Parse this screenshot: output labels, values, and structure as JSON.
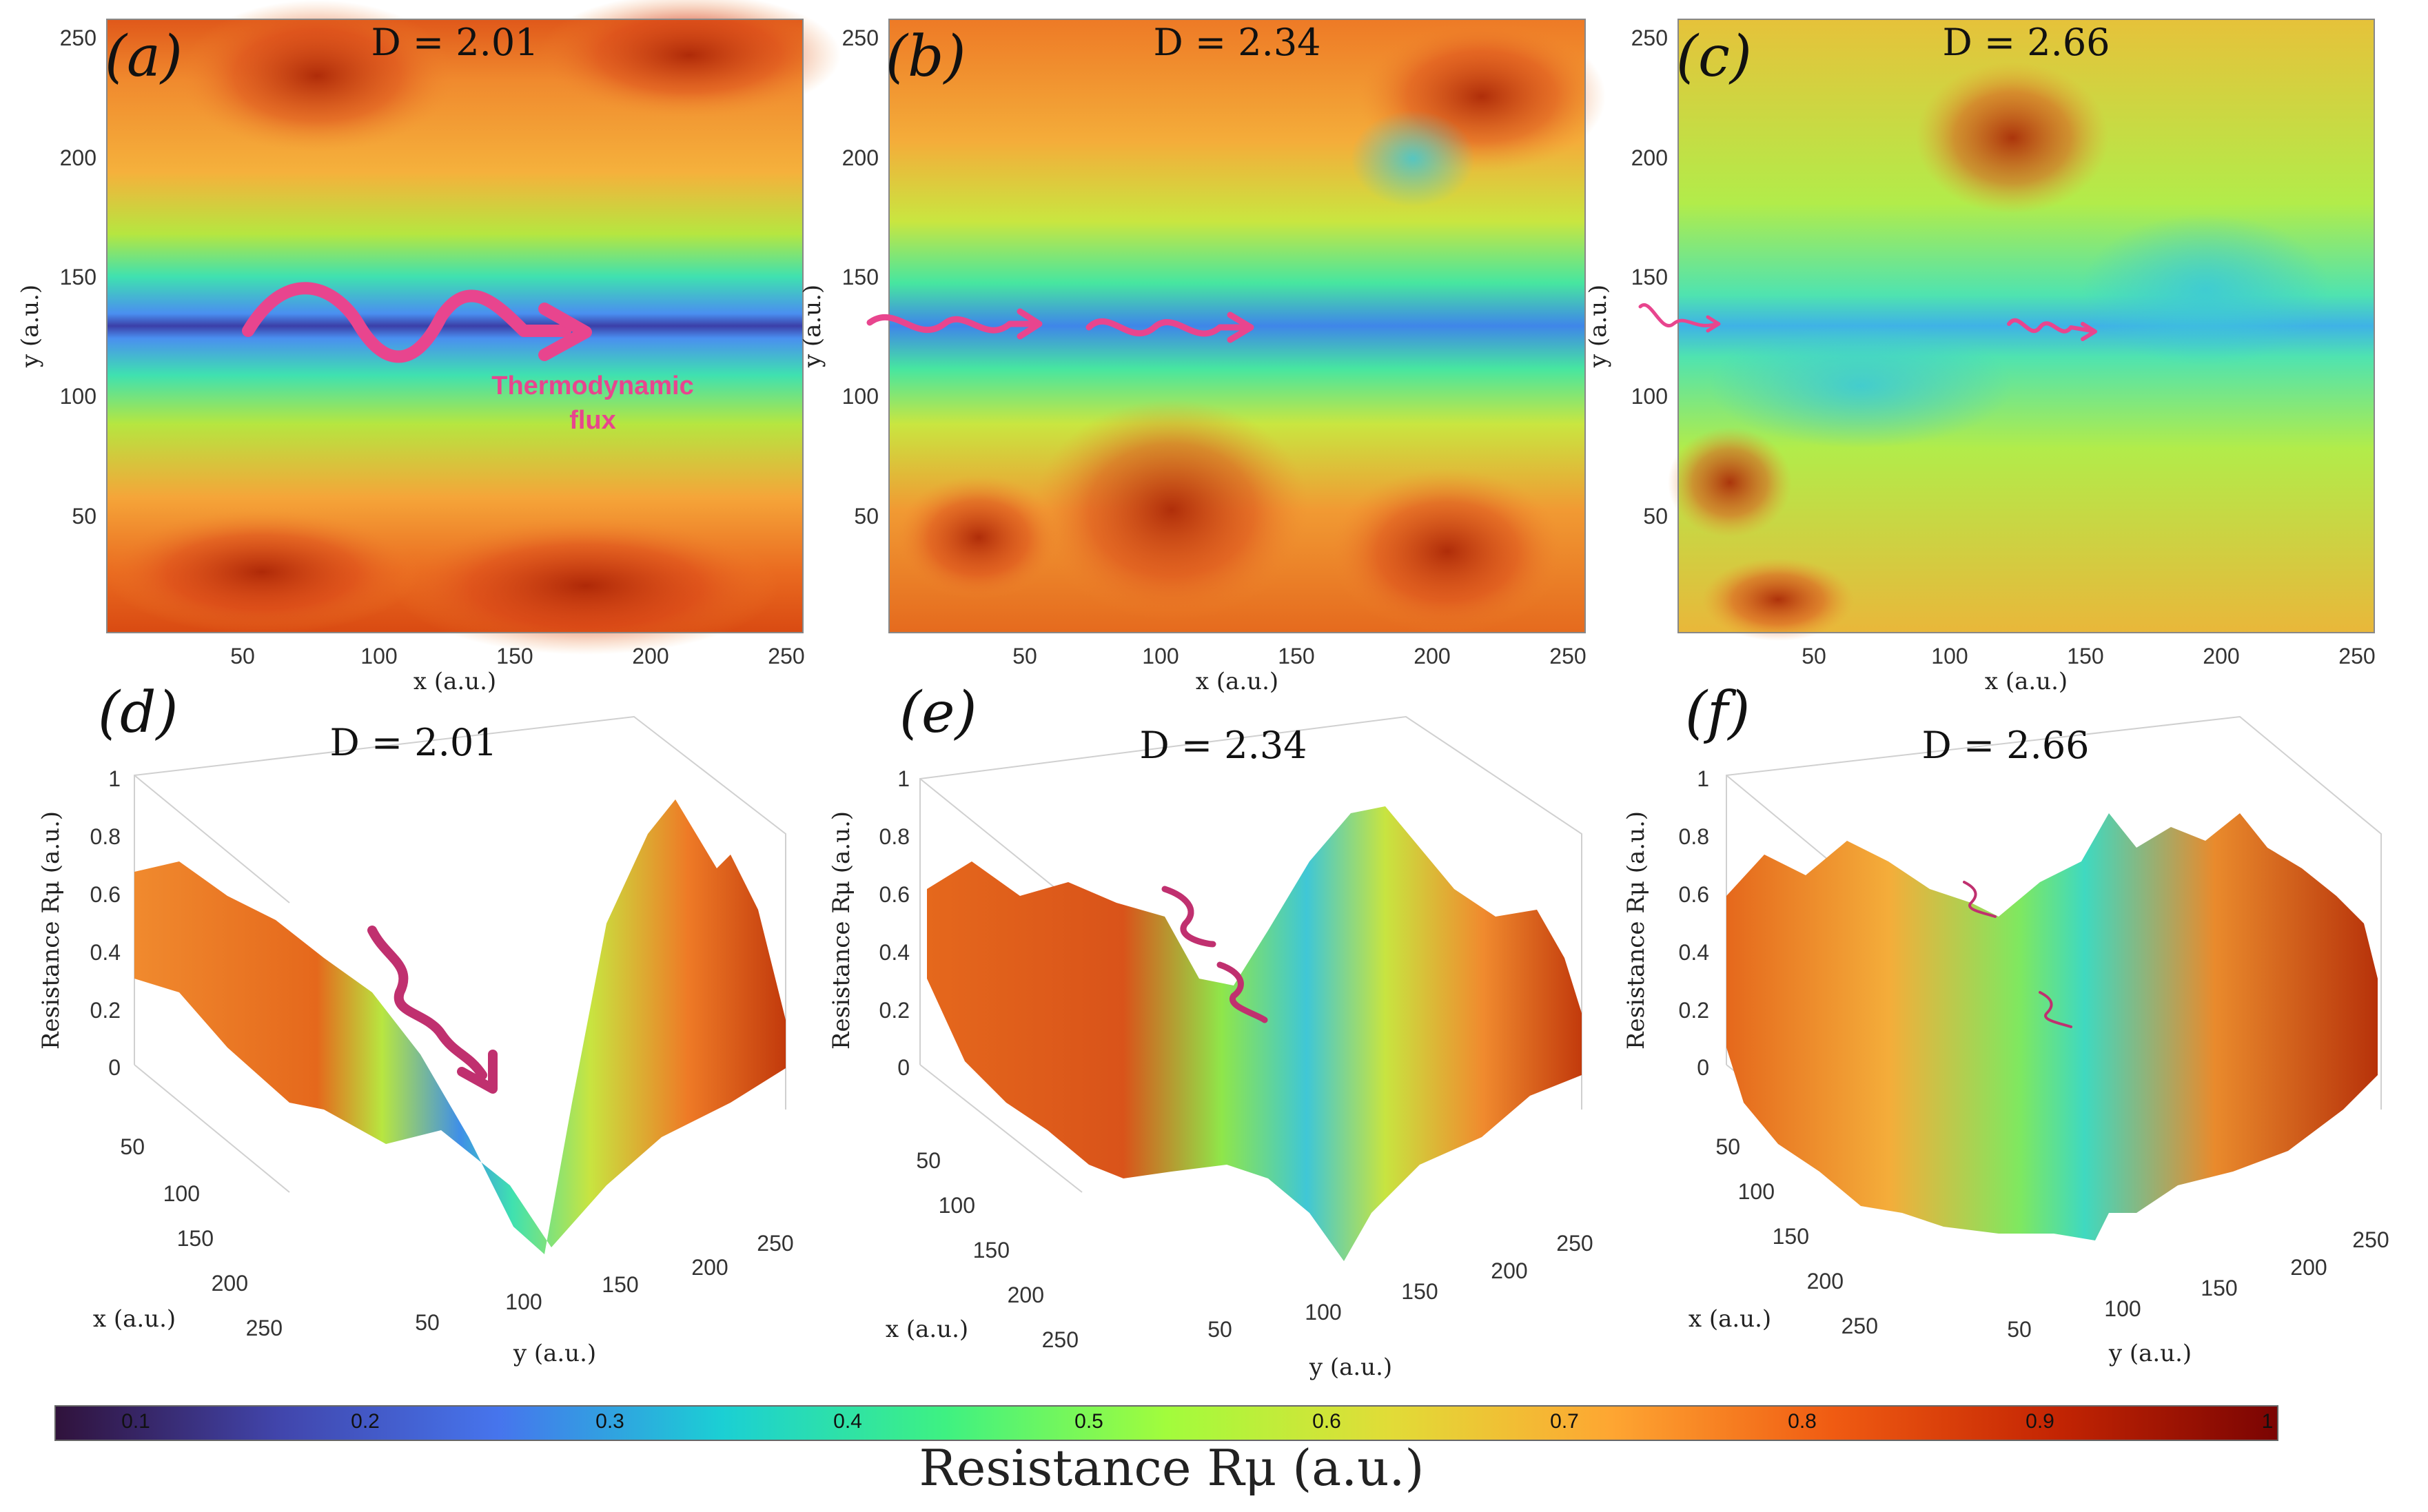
{
  "panels": [
    {
      "id": "a",
      "label": "(a)",
      "dlabel": "D = 2.01",
      "xlabel": "x (a.u.)",
      "ylabel": "y (a.u.)",
      "xticks": [
        "50",
        "100",
        "150",
        "200",
        "250"
      ],
      "yticks": [
        "50",
        "100",
        "150",
        "200",
        "250"
      ]
    },
    {
      "id": "b",
      "label": "(b)",
      "dlabel": "D = 2.34",
      "xlabel": "x (a.u.)",
      "ylabel": "y (a.u.)",
      "xticks": [
        "50",
        "100",
        "150",
        "200",
        "250"
      ],
      "yticks": [
        "50",
        "100",
        "150",
        "200",
        "250"
      ]
    },
    {
      "id": "c",
      "label": "(c)",
      "dlabel": "D = 2.66",
      "xlabel": "x (a.u.)",
      "ylabel": "y (a.u.)",
      "xticks": [
        "50",
        "100",
        "150",
        "200",
        "250"
      ],
      "yticks": [
        "50",
        "100",
        "150",
        "200",
        "250"
      ]
    },
    {
      "id": "d",
      "label": "(d)",
      "dlabel": "D = 2.01",
      "zlabel": "Resistance Rμ (a.u.)",
      "xlabel": "x (a.u.)",
      "ylabel": "y (a.u.)",
      "zticks": [
        "0",
        "0.2",
        "0.4",
        "0.6",
        "0.8",
        "1"
      ],
      "xticks": [
        "50",
        "100",
        "150",
        "200",
        "250"
      ],
      "yticks": [
        "50",
        "100",
        "150",
        "200",
        "250"
      ]
    },
    {
      "id": "e",
      "label": "(e)",
      "dlabel": "D = 2.34",
      "zlabel": "Resistance Rμ (a.u.)",
      "xlabel": "x (a.u.)",
      "ylabel": "y (a.u.)",
      "zticks": [
        "0",
        "0.2",
        "0.4",
        "0.6",
        "0.8",
        "1"
      ],
      "xticks": [
        "50",
        "100",
        "150",
        "200",
        "250"
      ],
      "yticks": [
        "50",
        "100",
        "150",
        "200",
        "250"
      ]
    },
    {
      "id": "f",
      "label": "(f)",
      "dlabel": "D = 2.66",
      "zlabel": "Resistance Rμ (a.u.)",
      "xlabel": "x (a.u.)",
      "ylabel": "y (a.u.)",
      "zticks": [
        "0",
        "0.2",
        "0.4",
        "0.6",
        "0.8",
        "1"
      ],
      "xticks": [
        "50",
        "100",
        "150",
        "200",
        "250"
      ],
      "yticks": [
        "50",
        "100",
        "150",
        "200",
        "250"
      ]
    }
  ],
  "annotation": {
    "flux_line1": "Thermodynamic",
    "flux_line2": "flux",
    "flux_color": "#e8458e"
  },
  "colorbar": {
    "title": "Resistance Rμ (a.u.)",
    "ticks": [
      "0.1",
      "0.2",
      "0.3",
      "0.4",
      "0.5",
      "0.6",
      "0.7",
      "0.8",
      "0.9",
      "1"
    ],
    "colormap": "turbo"
  },
  "chart_data": [
    {
      "type": "heatmap",
      "panel": "a",
      "title": "D = 2.01",
      "xlabel": "x (a.u.)",
      "ylabel": "y (a.u.)",
      "xlim": [
        0,
        256
      ],
      "ylim": [
        0,
        256
      ],
      "zlim": [
        0,
        1
      ],
      "valley_y": 128,
      "valley_min": 0.25,
      "max_value": 0.9
    },
    {
      "type": "heatmap",
      "panel": "b",
      "title": "D = 2.34",
      "xlabel": "x (a.u.)",
      "ylabel": "y (a.u.)",
      "xlim": [
        0,
        256
      ],
      "ylim": [
        0,
        256
      ],
      "zlim": [
        0,
        1
      ],
      "valley_y": 128,
      "valley_min": 0.3,
      "max_value": 0.92
    },
    {
      "type": "heatmap",
      "panel": "c",
      "title": "D = 2.66",
      "xlabel": "x (a.u.)",
      "ylabel": "y (a.u.)",
      "xlim": [
        0,
        256
      ],
      "ylim": [
        0,
        256
      ],
      "zlim": [
        0,
        1
      ],
      "valley_y": 128,
      "valley_min": 0.35,
      "max_value": 0.9
    },
    {
      "type": "surface",
      "panel": "d",
      "title": "D = 2.01",
      "zlabel": "Resistance Rμ (a.u.)",
      "zlim": [
        0,
        1
      ],
      "xlim": [
        0,
        256
      ],
      "ylim": [
        0,
        256
      ]
    },
    {
      "type": "surface",
      "panel": "e",
      "title": "D = 2.34",
      "zlabel": "Resistance Rμ (a.u.)",
      "zlim": [
        0,
        1
      ],
      "xlim": [
        0,
        256
      ],
      "ylim": [
        0,
        256
      ]
    },
    {
      "type": "surface",
      "panel": "f",
      "title": "D = 2.66",
      "zlabel": "Resistance Rμ (a.u.)",
      "zlim": [
        0,
        1
      ],
      "xlim": [
        0,
        256
      ],
      "ylim": [
        0,
        256
      ]
    }
  ]
}
